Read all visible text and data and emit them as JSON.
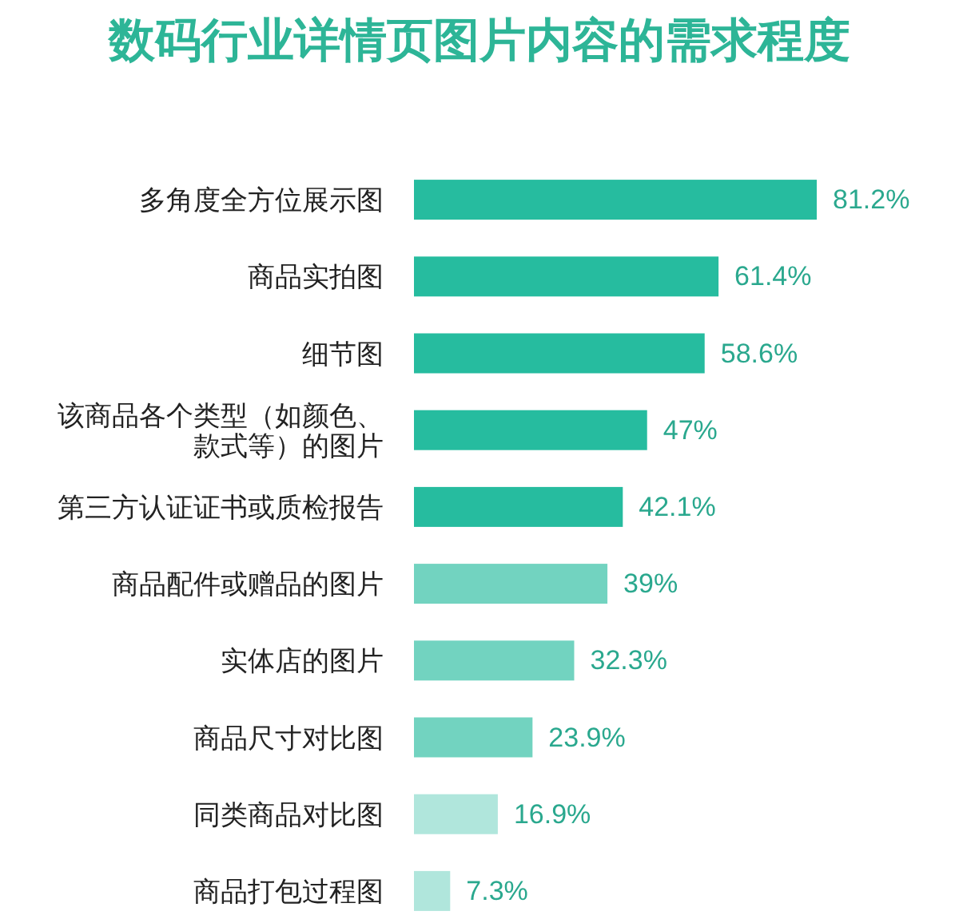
{
  "chart_data": {
    "type": "bar",
    "orientation": "horizontal",
    "title": "数码行业详情页图片内容的需求程度",
    "categories": [
      "多角度全方位展示图",
      "商品实拍图",
      "细节图",
      "该商品各个类型（如颜色、款式等）的图片",
      "第三方认证证书或质检报告",
      "商品配件或赠品的图片",
      "实体店的图片",
      "商品尺寸对比图",
      "同类商品对比图",
      "商品打包过程图"
    ],
    "values": [
      81.2,
      61.4,
      58.6,
      47,
      42.1,
      39,
      32.3,
      23.9,
      16.9,
      7.3
    ],
    "colors": [
      "#26bc9f",
      "#26bc9f",
      "#26bc9f",
      "#26bc9f",
      "#26bc9f",
      "#72d3c0",
      "#72d3c0",
      "#72d3c0",
      "#b0e6dc",
      "#b0e6dc"
    ],
    "value_labels": [
      "81.2%",
      "61.4%",
      "58.6%",
      "47%",
      "42.1%",
      "39%",
      "32.3%",
      "23.9%",
      "16.9%",
      "7.3%"
    ]
  }
}
